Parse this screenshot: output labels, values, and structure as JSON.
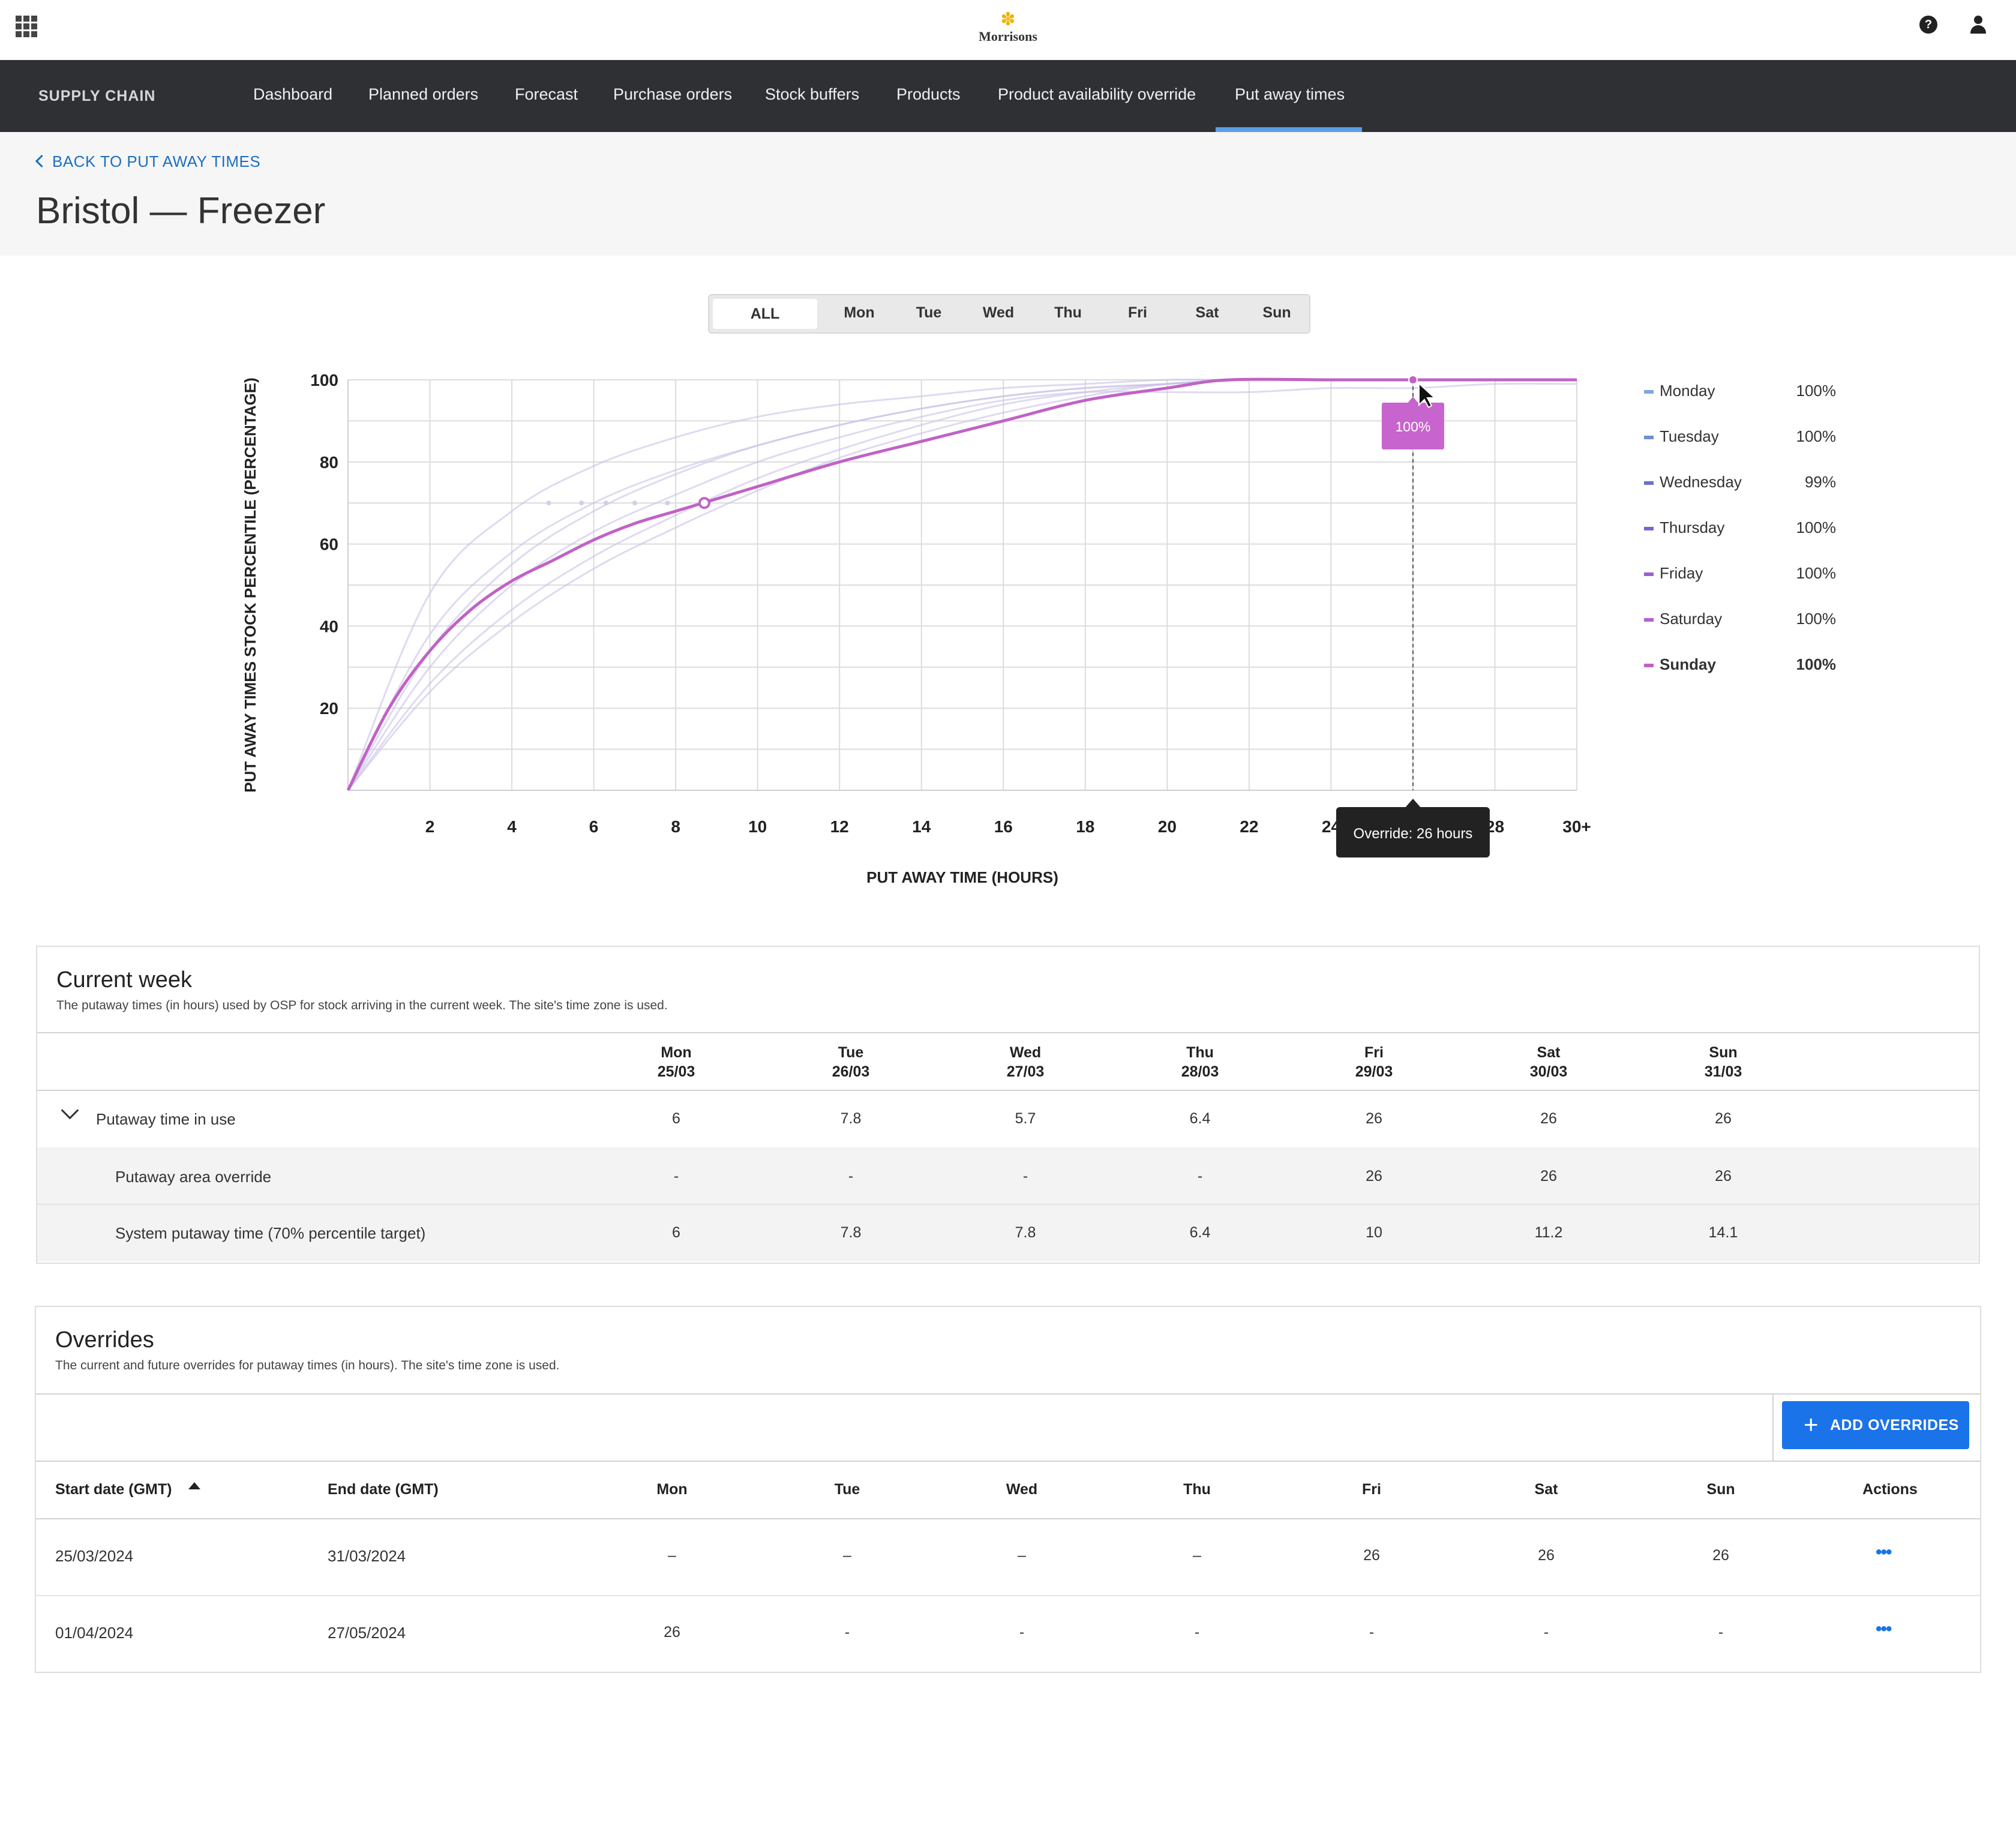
{
  "header": {
    "logo_text": "Morrisons",
    "help_icon": "question-circle-icon",
    "user_icon": "person-icon",
    "apps_icon": "app-grid-icon"
  },
  "nav": {
    "brand": "SUPPLY CHAIN",
    "items": [
      "Dashboard",
      "Planned orders",
      "Forecast",
      "Purchase orders",
      "Stock buffers",
      "Products",
      "Product availability override",
      "Put away times"
    ],
    "active": "Put away times"
  },
  "page": {
    "back_link": "BACK TO PUT AWAY TIMES",
    "title": "Bristol — Freezer"
  },
  "day_filter": {
    "options": [
      "ALL",
      "Mon",
      "Tue",
      "Wed",
      "Thu",
      "Fri",
      "Sat",
      "Sun"
    ],
    "selected": "ALL"
  },
  "chart_data": {
    "type": "line",
    "xlabel": "PUT AWAY TIME (HOURS)",
    "ylabel": "PUT AWAY TIMES STOCK PERCENTILE (PERCENTAGE)",
    "x_ticks": [
      "2",
      "4",
      "6",
      "8",
      "10",
      "12",
      "14",
      "16",
      "18",
      "20",
      "22",
      "24",
      "26",
      "28",
      "30+"
    ],
    "y_ticks": [
      20,
      40,
      60,
      80,
      100
    ],
    "xlim": [
      0,
      30
    ],
    "ylim": [
      0,
      100
    ],
    "grid": true,
    "legend_position": "right",
    "highlighted_series": "Sunday",
    "series": [
      {
        "name": "Monday",
        "color": "#7ea6e0",
        "x": [
          0,
          2,
          4,
          6,
          8,
          10,
          12,
          14,
          16,
          18,
          20,
          22,
          24,
          26,
          28,
          30
        ],
        "y": [
          0,
          48,
          68,
          79,
          86,
          91,
          94,
          96,
          98,
          99,
          100,
          100,
          100,
          100,
          100,
          100
        ]
      },
      {
        "name": "Tuesday",
        "color": "#6f8fd8",
        "x": [
          0,
          2,
          4,
          6,
          8,
          10,
          12,
          14,
          16,
          18,
          20,
          22,
          24,
          26,
          28,
          30
        ],
        "y": [
          0,
          38,
          58,
          70,
          78,
          84,
          89,
          93,
          96,
          98,
          99,
          100,
          100,
          100,
          100,
          100
        ]
      },
      {
        "name": "Wednesday",
        "color": "#6c6fc9",
        "x": [
          0,
          2,
          4,
          6,
          8,
          10,
          12,
          14,
          16,
          18,
          20,
          22,
          24,
          26,
          28,
          30
        ],
        "y": [
          0,
          30,
          50,
          63,
          72,
          80,
          86,
          91,
          95,
          97,
          97,
          97,
          98,
          98,
          99,
          99
        ]
      },
      {
        "name": "Thursday",
        "color": "#7a62d0",
        "x": [
          0,
          2,
          4,
          6,
          8,
          10,
          12,
          14,
          16,
          18,
          20,
          22,
          24,
          26,
          28,
          30
        ],
        "y": [
          0,
          34,
          55,
          68,
          77,
          84,
          89,
          93,
          96,
          98,
          99,
          100,
          100,
          100,
          100,
          100
        ]
      },
      {
        "name": "Friday",
        "color": "#9a60cf",
        "x": [
          0,
          2,
          4,
          6,
          8,
          10,
          12,
          14,
          16,
          18,
          20,
          22,
          24,
          26,
          28,
          30
        ],
        "y": [
          0,
          26,
          44,
          57,
          67,
          76,
          83,
          89,
          94,
          97,
          99,
          100,
          100,
          100,
          100,
          100
        ]
      },
      {
        "name": "Saturday",
        "color": "#b163cc",
        "x": [
          0,
          2,
          4,
          6,
          8,
          10,
          12,
          14,
          16,
          18,
          20,
          22,
          24,
          26,
          28,
          30
        ],
        "y": [
          0,
          24,
          41,
          54,
          64,
          73,
          81,
          87,
          92,
          96,
          99,
          100,
          100,
          100,
          100,
          100
        ]
      },
      {
        "name": "Sunday",
        "color": "#c062c6",
        "x": [
          0,
          1,
          2,
          3,
          4,
          5,
          6,
          7,
          8,
          9,
          10,
          12,
          14,
          16,
          18,
          20,
          21.5,
          24,
          26,
          28,
          30
        ],
        "y": [
          0,
          20,
          34,
          44,
          51,
          56,
          61,
          65,
          68,
          71,
          74,
          80,
          85,
          90,
          95,
          98,
          100,
          100,
          100,
          100,
          100
        ]
      }
    ],
    "legend_values": [
      "100%",
      "100%",
      "99%",
      "100%",
      "100%",
      "100%",
      "100%"
    ],
    "marker_point": {
      "x": 8.7,
      "y": 70
    },
    "hover": {
      "x": 26,
      "y": 100,
      "tooltip_value": "100%",
      "x_tooltip": "Override: 26 hours"
    }
  },
  "current_week": {
    "title": "Current week",
    "subtitle": "The putaway times (in hours) used by OSP for stock arriving in the current week. The site's time zone is used.",
    "days": [
      {
        "day": "Mon",
        "date": "25/03"
      },
      {
        "day": "Tue",
        "date": "26/03"
      },
      {
        "day": "Wed",
        "date": "27/03"
      },
      {
        "day": "Thu",
        "date": "28/03"
      },
      {
        "day": "Fri",
        "date": "29/03"
      },
      {
        "day": "Sat",
        "date": "30/03"
      },
      {
        "day": "Sun",
        "date": "31/03"
      }
    ],
    "rows": [
      {
        "label": "Putaway time in use",
        "values": [
          "6",
          "7.8",
          "5.7",
          "6.4",
          "26",
          "26",
          "26"
        ]
      },
      {
        "label": "Putaway area override",
        "values": [
          "-",
          "-",
          "-",
          "-",
          "26",
          "26",
          "26"
        ]
      },
      {
        "label": "System putaway time (70% percentile target)",
        "values": [
          "6",
          "7.8",
          "7.8",
          "6.4",
          "10",
          "11.2",
          "14.1"
        ]
      }
    ]
  },
  "overrides": {
    "title": "Overrides",
    "subtitle": "The current and future overrides for putaway times (in hours). The site's time zone is used.",
    "add_button": "ADD OVERRIDES",
    "columns": [
      "Start date (GMT)",
      "End date (GMT)",
      "Mon",
      "Tue",
      "Wed",
      "Thu",
      "Fri",
      "Sat",
      "Sun",
      "Actions"
    ],
    "rows": [
      {
        "start": "25/03/2024",
        "end": "31/03/2024",
        "values": [
          "–",
          "–",
          "–",
          "–",
          "26",
          "26",
          "26"
        ],
        "actions": "•••"
      },
      {
        "start": "01/04/2024",
        "end": "27/05/2024",
        "values": [
          "26",
          "-",
          "-",
          "-",
          "-",
          "-",
          "-"
        ],
        "actions": "•••"
      }
    ]
  }
}
